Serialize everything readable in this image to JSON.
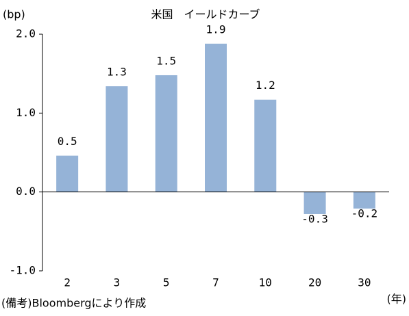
{
  "chart_data": {
    "type": "bar",
    "title": "米国　イールドカーブ",
    "y_label": "(bp)",
    "x_label": "(年)",
    "note": "(備考)Bloombergにより作成",
    "categories": [
      "2",
      "3",
      "5",
      "7",
      "10",
      "20",
      "30"
    ],
    "values": [
      0.46,
      1.34,
      1.48,
      1.88,
      1.17,
      -0.28,
      -0.21
    ],
    "value_labels": [
      "0.5",
      "1.3",
      "1.5",
      "1.9",
      "1.2",
      "-0.3",
      "-0.2"
    ],
    "color": "#95b3d7",
    "ylim": [
      -1,
      2
    ],
    "yticks": [
      {
        "value": -1,
        "label": "-1.0"
      },
      {
        "value": 0,
        "label": "0.0"
      },
      {
        "value": 1,
        "label": "1.0"
      },
      {
        "value": 2,
        "label": "2.0"
      }
    ]
  }
}
